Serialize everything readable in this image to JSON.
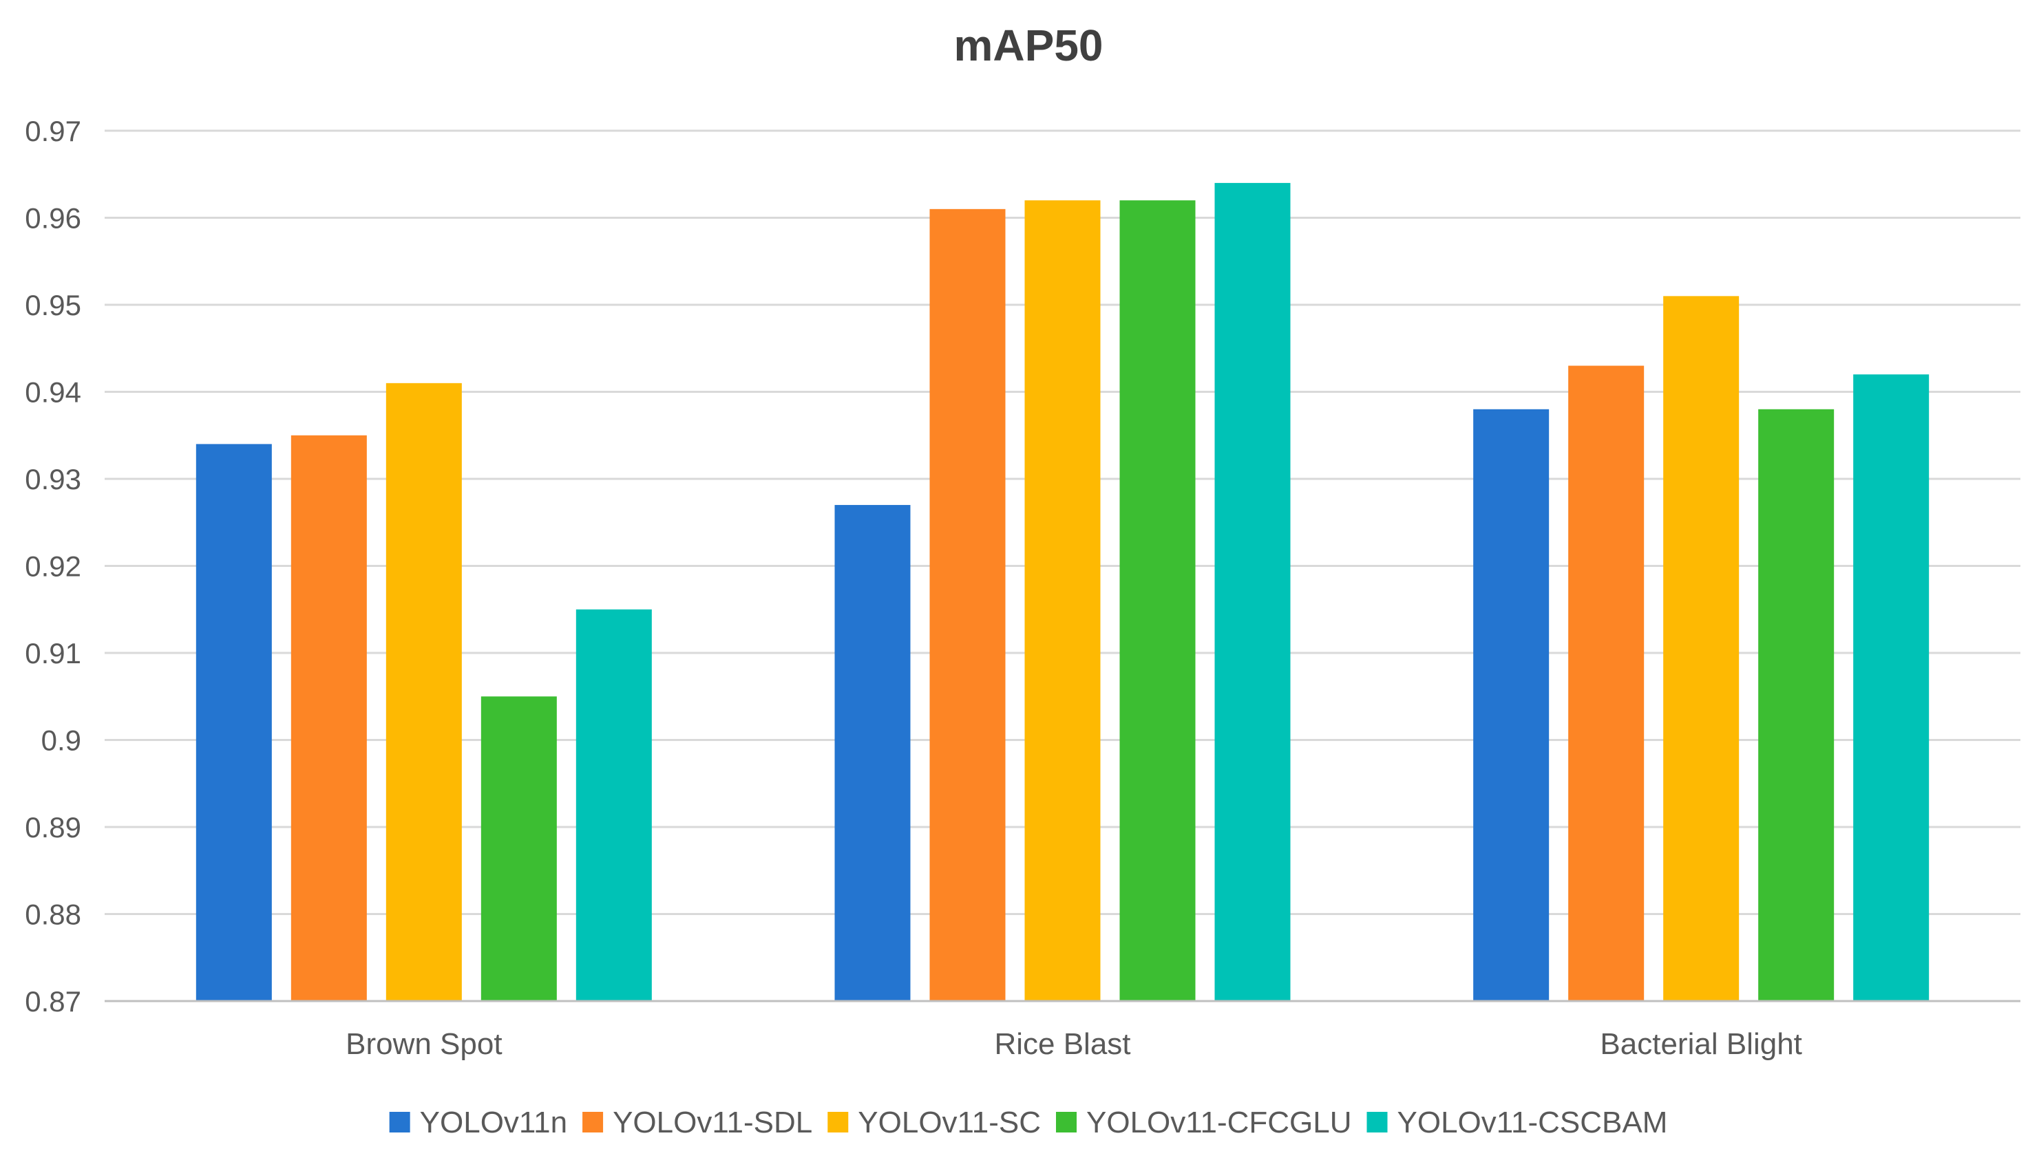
{
  "chart_data": {
    "type": "bar",
    "title": "mAP50",
    "xlabel": "",
    "ylabel": "",
    "ylim": [
      0.87,
      0.97
    ],
    "yticks": [
      "0.87",
      "0.88",
      "0.89",
      "0.9",
      "0.91",
      "0.92",
      "0.93",
      "0.94",
      "0.95",
      "0.96",
      "0.97"
    ],
    "grid": true,
    "legend_position": "bottom",
    "categories": [
      "Brown Spot",
      "Rice Blast",
      "Bacterial Blight"
    ],
    "series": [
      {
        "name": "YOLOv11n",
        "color": "#2475D0",
        "values": [
          0.934,
          0.927,
          0.938
        ]
      },
      {
        "name": "YOLOv11-SDL",
        "color": "#FD8525",
        "values": [
          0.935,
          0.961,
          0.943
        ]
      },
      {
        "name": "YOLOv11-SC",
        "color": "#FEB902",
        "values": [
          0.941,
          0.962,
          0.951
        ]
      },
      {
        "name": "YOLOv11-CFCGLU",
        "color": "#3CBE32",
        "values": [
          0.905,
          0.962,
          0.938
        ]
      },
      {
        "name": "YOLOv11-CSCBAM",
        "color": "#00C2B6",
        "values": [
          0.915,
          0.964,
          0.942
        ]
      }
    ]
  }
}
